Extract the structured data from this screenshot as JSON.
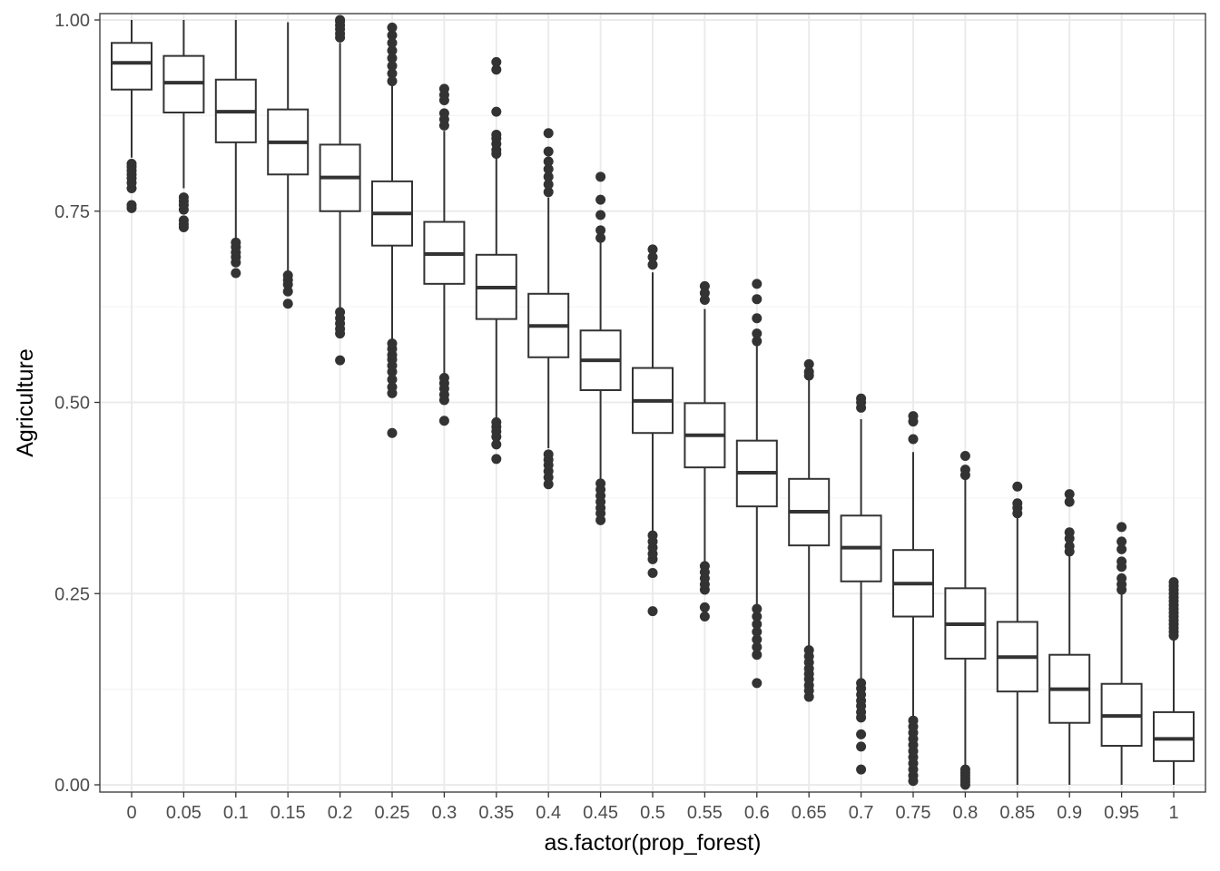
{
  "chart_data": {
    "type": "boxplot",
    "title": "",
    "xlabel": "as.factor(prop_forest)",
    "ylabel": "Agriculture",
    "ylim": [
      0,
      1
    ],
    "y_ticks": [
      "0.00",
      "0.25",
      "0.50",
      "0.75",
      "1.00"
    ],
    "grid": true,
    "theme": "bw",
    "colors": {
      "box": "#333333",
      "grid_major": "#ebebeb",
      "grid_minor": "#f5f5f5",
      "panel_border": "#333333"
    },
    "categories": [
      "0",
      "0.05",
      "0.1",
      "0.15",
      "0.2",
      "0.25",
      "0.3",
      "0.35",
      "0.4",
      "0.45",
      "0.5",
      "0.55",
      "0.6",
      "0.65",
      "0.7",
      "0.75",
      "0.8",
      "0.85",
      "0.9",
      "0.95",
      "1"
    ],
    "boxes": [
      {
        "min": 0.82,
        "q1": 0.909,
        "median": 0.944,
        "q3": 0.97,
        "max": 1.0,
        "outliers": [
          0.754,
          0.758,
          0.78,
          0.787,
          0.793,
          0.798,
          0.803,
          0.808,
          0.812
        ]
      },
      {
        "min": 0.78,
        "q1": 0.879,
        "median": 0.918,
        "q3": 0.953,
        "max": 1.0,
        "outliers": [
          0.729,
          0.733,
          0.738,
          0.752,
          0.758,
          0.763,
          0.768
        ]
      },
      {
        "min": 0.715,
        "q1": 0.84,
        "median": 0.88,
        "q3": 0.922,
        "max": 1.0,
        "outliers": [
          0.669,
          0.683,
          0.69,
          0.696,
          0.703,
          0.709
        ]
      },
      {
        "min": 0.67,
        "q1": 0.798,
        "median": 0.84,
        "q3": 0.883,
        "max": 0.997,
        "outliers": [
          0.629,
          0.645,
          0.654,
          0.66,
          0.666
        ]
      },
      {
        "min": 0.62,
        "q1": 0.75,
        "median": 0.794,
        "q3": 0.837,
        "max": 0.97,
        "outliers": [
          0.555,
          0.59,
          0.596,
          0.603,
          0.61,
          0.618,
          0.977,
          0.982,
          0.988,
          0.993,
          0.998,
          1.0
        ]
      },
      {
        "min": 0.58,
        "q1": 0.705,
        "median": 0.747,
        "q3": 0.789,
        "max": 0.915,
        "outliers": [
          0.46,
          0.512,
          0.52,
          0.53,
          0.54,
          0.548,
          0.556,
          0.562,
          0.57,
          0.577,
          0.92,
          0.93,
          0.94,
          0.95,
          0.96,
          0.97,
          0.98,
          0.99
        ]
      },
      {
        "min": 0.535,
        "q1": 0.655,
        "median": 0.694,
        "q3": 0.736,
        "max": 0.855,
        "outliers": [
          0.476,
          0.503,
          0.51,
          0.518,
          0.525,
          0.532,
          0.862,
          0.87,
          0.878,
          0.895,
          0.902,
          0.91
        ]
      },
      {
        "min": 0.48,
        "q1": 0.609,
        "median": 0.65,
        "q3": 0.693,
        "max": 0.82,
        "outliers": [
          0.426,
          0.445,
          0.455,
          0.462,
          0.468,
          0.474,
          0.825,
          0.83,
          0.838,
          0.845,
          0.85,
          0.88,
          0.935,
          0.945
        ]
      },
      {
        "min": 0.44,
        "q1": 0.559,
        "median": 0.6,
        "q3": 0.642,
        "max": 0.768,
        "outliers": [
          0.393,
          0.402,
          0.41,
          0.418,
          0.425,
          0.432,
          0.775,
          0.785,
          0.795,
          0.805,
          0.815,
          0.828,
          0.852
        ]
      },
      {
        "min": 0.4,
        "q1": 0.516,
        "median": 0.555,
        "q3": 0.594,
        "max": 0.71,
        "outliers": [
          0.346,
          0.355,
          0.362,
          0.37,
          0.378,
          0.386,
          0.394,
          0.715,
          0.725,
          0.745,
          0.765,
          0.795
        ]
      },
      {
        "min": 0.33,
        "q1": 0.46,
        "median": 0.502,
        "q3": 0.545,
        "max": 0.67,
        "outliers": [
          0.227,
          0.277,
          0.295,
          0.302,
          0.31,
          0.318,
          0.326,
          0.68,
          0.69,
          0.7
        ]
      },
      {
        "min": 0.29,
        "q1": 0.415,
        "median": 0.457,
        "q3": 0.499,
        "max": 0.622,
        "outliers": [
          0.22,
          0.232,
          0.255,
          0.262,
          0.27,
          0.278,
          0.286,
          0.634,
          0.643,
          0.652
        ]
      },
      {
        "min": 0.235,
        "q1": 0.364,
        "median": 0.408,
        "q3": 0.45,
        "max": 0.575,
        "outliers": [
          0.133,
          0.17,
          0.18,
          0.19,
          0.2,
          0.21,
          0.22,
          0.23,
          0.58,
          0.59,
          0.61,
          0.635,
          0.655
        ]
      },
      {
        "min": 0.18,
        "q1": 0.313,
        "median": 0.357,
        "q3": 0.4,
        "max": 0.53,
        "outliers": [
          0.115,
          0.123,
          0.13,
          0.138,
          0.145,
          0.152,
          0.16,
          0.168,
          0.176,
          0.535,
          0.54,
          0.55
        ]
      },
      {
        "min": 0.135,
        "q1": 0.266,
        "median": 0.31,
        "q3": 0.352,
        "max": 0.478,
        "outliers": [
          0.02,
          0.05,
          0.066,
          0.088,
          0.095,
          0.103,
          0.11,
          0.118,
          0.126,
          0.133,
          0.493,
          0.5,
          0.505
        ]
      },
      {
        "min": 0.09,
        "q1": 0.22,
        "median": 0.263,
        "q3": 0.307,
        "max": 0.435,
        "outliers": [
          0.005,
          0.012,
          0.02,
          0.028,
          0.036,
          0.044,
          0.052,
          0.06,
          0.068,
          0.076,
          0.084,
          0.452,
          0.475,
          0.482
        ]
      },
      {
        "min": 0.025,
        "q1": 0.165,
        "median": 0.21,
        "q3": 0.257,
        "max": 0.4,
        "outliers": [
          0.0,
          0.004,
          0.008,
          0.012,
          0.016,
          0.02,
          0.405,
          0.412,
          0.43
        ]
      },
      {
        "min": 0.0,
        "q1": 0.122,
        "median": 0.167,
        "q3": 0.213,
        "max": 0.352,
        "outliers": [
          0.355,
          0.362,
          0.368,
          0.39
        ]
      },
      {
        "min": 0.0,
        "q1": 0.081,
        "median": 0.125,
        "q3": 0.17,
        "max": 0.3,
        "outliers": [
          0.305,
          0.312,
          0.322,
          0.33,
          0.37,
          0.38
        ]
      },
      {
        "min": 0.0,
        "q1": 0.051,
        "median": 0.09,
        "q3": 0.132,
        "max": 0.252,
        "outliers": [
          0.255,
          0.262,
          0.27,
          0.285,
          0.292,
          0.308,
          0.318,
          0.337
        ]
      },
      {
        "min": 0.0,
        "q1": 0.031,
        "median": 0.06,
        "q3": 0.095,
        "max": 0.19,
        "outliers": [
          0.195,
          0.2,
          0.205,
          0.21,
          0.215,
          0.22,
          0.225,
          0.23,
          0.235,
          0.24,
          0.245,
          0.25,
          0.255,
          0.26,
          0.265
        ]
      }
    ]
  }
}
